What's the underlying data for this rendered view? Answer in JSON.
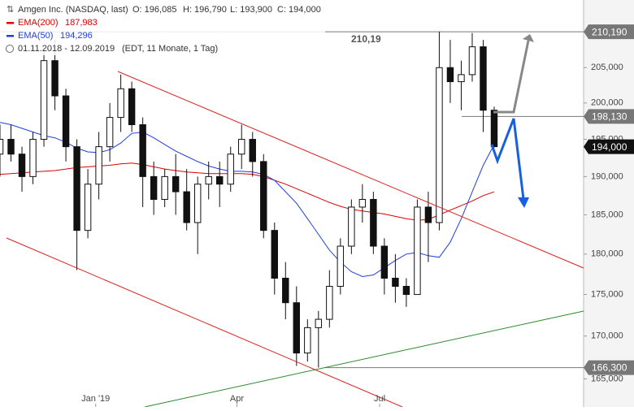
{
  "chart_data": {
    "type": "candlestick",
    "title": "Amgen Inc. (NASDAQ, last)",
    "quote": [
      "O: 196,085",
      "H: 196,790",
      "L: 193,900",
      "C: 194,000"
    ],
    "period": "01.11.2018 - 12.09.2019",
    "period_note": "(EDT, 11 Monate, 1 Tag)",
    "annotation": "210,19",
    "log_scale": true,
    "xlim": [
      0,
      372
    ],
    "xticks": [
      {
        "value": 61,
        "label": "Jan '19"
      },
      {
        "value": 151,
        "label": "Apr"
      },
      {
        "value": 242,
        "label": "Jul"
      }
    ],
    "ylim": [
      161.8,
      214.9
    ],
    "yticks": [
      {
        "value": 165,
        "label": "165,000"
      },
      {
        "value": 170,
        "label": "170,000"
      },
      {
        "value": 175,
        "label": "175,000"
      },
      {
        "value": 180,
        "label": "180,000"
      },
      {
        "value": 185,
        "label": "185,000"
      },
      {
        "value": 190,
        "label": "190,000"
      },
      {
        "value": 195,
        "label": "195,000"
      },
      {
        "value": 200,
        "label": "200,000"
      },
      {
        "value": 205,
        "label": "205,000"
      }
    ],
    "x": [
      0,
      7,
      14,
      21,
      28,
      35,
      42,
      49,
      56,
      63,
      70,
      77,
      84,
      91,
      98,
      105,
      112,
      119,
      126,
      133,
      140,
      147,
      154,
      161,
      168,
      175,
      182,
      189,
      196,
      203,
      210,
      217,
      224,
      231,
      238,
      245,
      252,
      259,
      266,
      273,
      280,
      287,
      294,
      301,
      308,
      315
    ],
    "open": [
      193,
      195,
      193,
      190,
      195,
      206,
      201,
      194,
      183,
      189,
      194,
      198,
      202,
      197,
      190,
      187,
      190,
      188,
      184,
      189,
      190,
      189,
      193,
      195,
      192,
      183,
      177,
      174,
      168,
      171,
      172,
      176,
      181,
      186,
      187,
      181,
      177,
      176,
      175,
      186,
      184,
      205,
      203,
      204,
      208,
      199
    ],
    "high": [
      197,
      197,
      194,
      196,
      208,
      209,
      202,
      195,
      191,
      196,
      200,
      204,
      203,
      198,
      192,
      191,
      193,
      191,
      190,
      192,
      192,
      194,
      197,
      196,
      193,
      184,
      179,
      176,
      172,
      173,
      178,
      182,
      187,
      189,
      188,
      182,
      180,
      177,
      187,
      188,
      210.19,
      209,
      206,
      210,
      209,
      199.5
    ],
    "low": [
      190,
      192,
      188,
      189,
      194,
      199,
      192,
      178,
      182,
      187,
      192,
      196,
      196,
      186,
      185,
      186,
      185,
      183,
      180,
      187,
      186,
      188,
      191,
      190,
      182,
      175,
      172,
      166.5,
      167,
      166.3,
      171,
      175,
      180,
      184,
      180,
      175,
      174,
      173.5,
      175,
      179,
      183,
      200,
      199,
      203,
      196,
      193.9
    ],
    "close": [
      195,
      193,
      190,
      195,
      206,
      201,
      194,
      183,
      189,
      194,
      198,
      202,
      197,
      190,
      187,
      190,
      188,
      184,
      189,
      190,
      189,
      193,
      195,
      192,
      183,
      177,
      174,
      168,
      171,
      172,
      176,
      181,
      186,
      187,
      181,
      177,
      176,
      175,
      186,
      184,
      205,
      203,
      204,
      208,
      199,
      194
    ],
    "series": [
      {
        "name": "EMA(200)",
        "color": "#dd0000",
        "value_label": "187,983",
        "values": [
          190.3,
          190.4,
          190.5,
          190.6,
          190.7,
          190.8,
          191,
          191.2,
          191.3,
          191.4,
          191.5,
          191.7,
          191.8,
          191.6,
          191.3,
          191,
          190.8,
          190.6,
          190.5,
          190.4,
          190.4,
          190.4,
          190.4,
          190.3,
          190,
          189.5,
          189,
          188.4,
          187.8,
          187.2,
          186.6,
          186.1,
          185.7,
          185.5,
          185.3,
          185.1,
          184.8,
          184.5,
          184.3,
          184.4,
          185,
          185.6,
          186.2,
          186.8,
          187.5,
          187.983
        ]
      },
      {
        "name": "EMA(50)",
        "color": "#1f3fe0",
        "value_label": "194,296",
        "values": [
          197.3,
          197,
          196.5,
          196,
          195.5,
          195.2,
          194.6,
          193.8,
          193.3,
          193.2,
          193.6,
          194.5,
          195.8,
          196,
          195.2,
          194.3,
          193.4,
          192.7,
          192,
          191.4,
          191,
          190.7,
          190.7,
          190.6,
          190.3,
          189.5,
          188,
          186.5,
          184.5,
          182.5,
          180.5,
          179,
          177.8,
          177.2,
          177.4,
          178.3,
          179.2,
          180,
          180.2,
          179.8,
          179.6,
          181.5,
          184.5,
          188,
          191.5,
          194.296
        ]
      }
    ],
    "price_levels": [
      {
        "value": 210.19,
        "label": "210,190"
      },
      {
        "value": 198.13,
        "label": "198,130"
      },
      {
        "value": 194,
        "label": "194,000"
      },
      {
        "value": 166.3,
        "label": "166,300"
      }
    ]
  }
}
